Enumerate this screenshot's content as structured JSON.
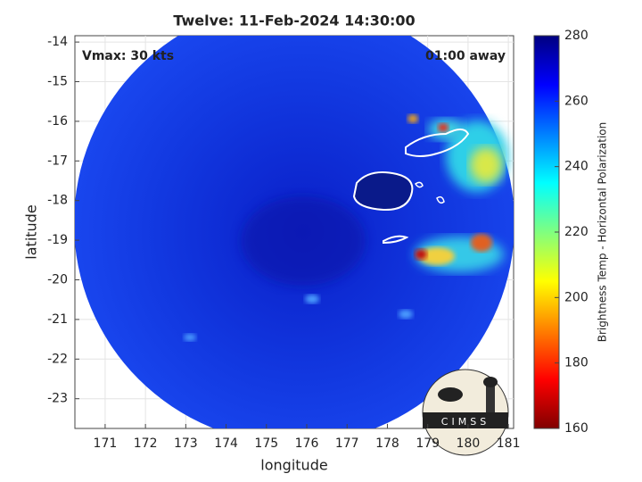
{
  "chart_data": {
    "type": "map",
    "title": "Twelve: 11-Feb-2024 14:30:00",
    "annotations": [
      "Vmax: 30 kts",
      "01:00 away"
    ],
    "xlabel": "longitude",
    "ylabel": "latitude",
    "xlim": [
      170.25,
      181.13
    ],
    "xticks": [
      171,
      172,
      173,
      174,
      175,
      176,
      177,
      178,
      179,
      180,
      181
    ],
    "ylim": [
      -23.75,
      -13.84
    ],
    "yticks": [
      -14,
      -15,
      -16,
      -17,
      -18,
      -19,
      -20,
      -21,
      -22,
      -23
    ],
    "grid": true,
    "colorbar": {
      "label": "Brightness Temp - Horizontal Polarization",
      "colormap": "jet",
      "lim": [
        160,
        280
      ],
      "ticks": [
        160,
        180,
        200,
        220,
        240,
        260,
        280
      ]
    },
    "logo": "CIMSS"
  }
}
